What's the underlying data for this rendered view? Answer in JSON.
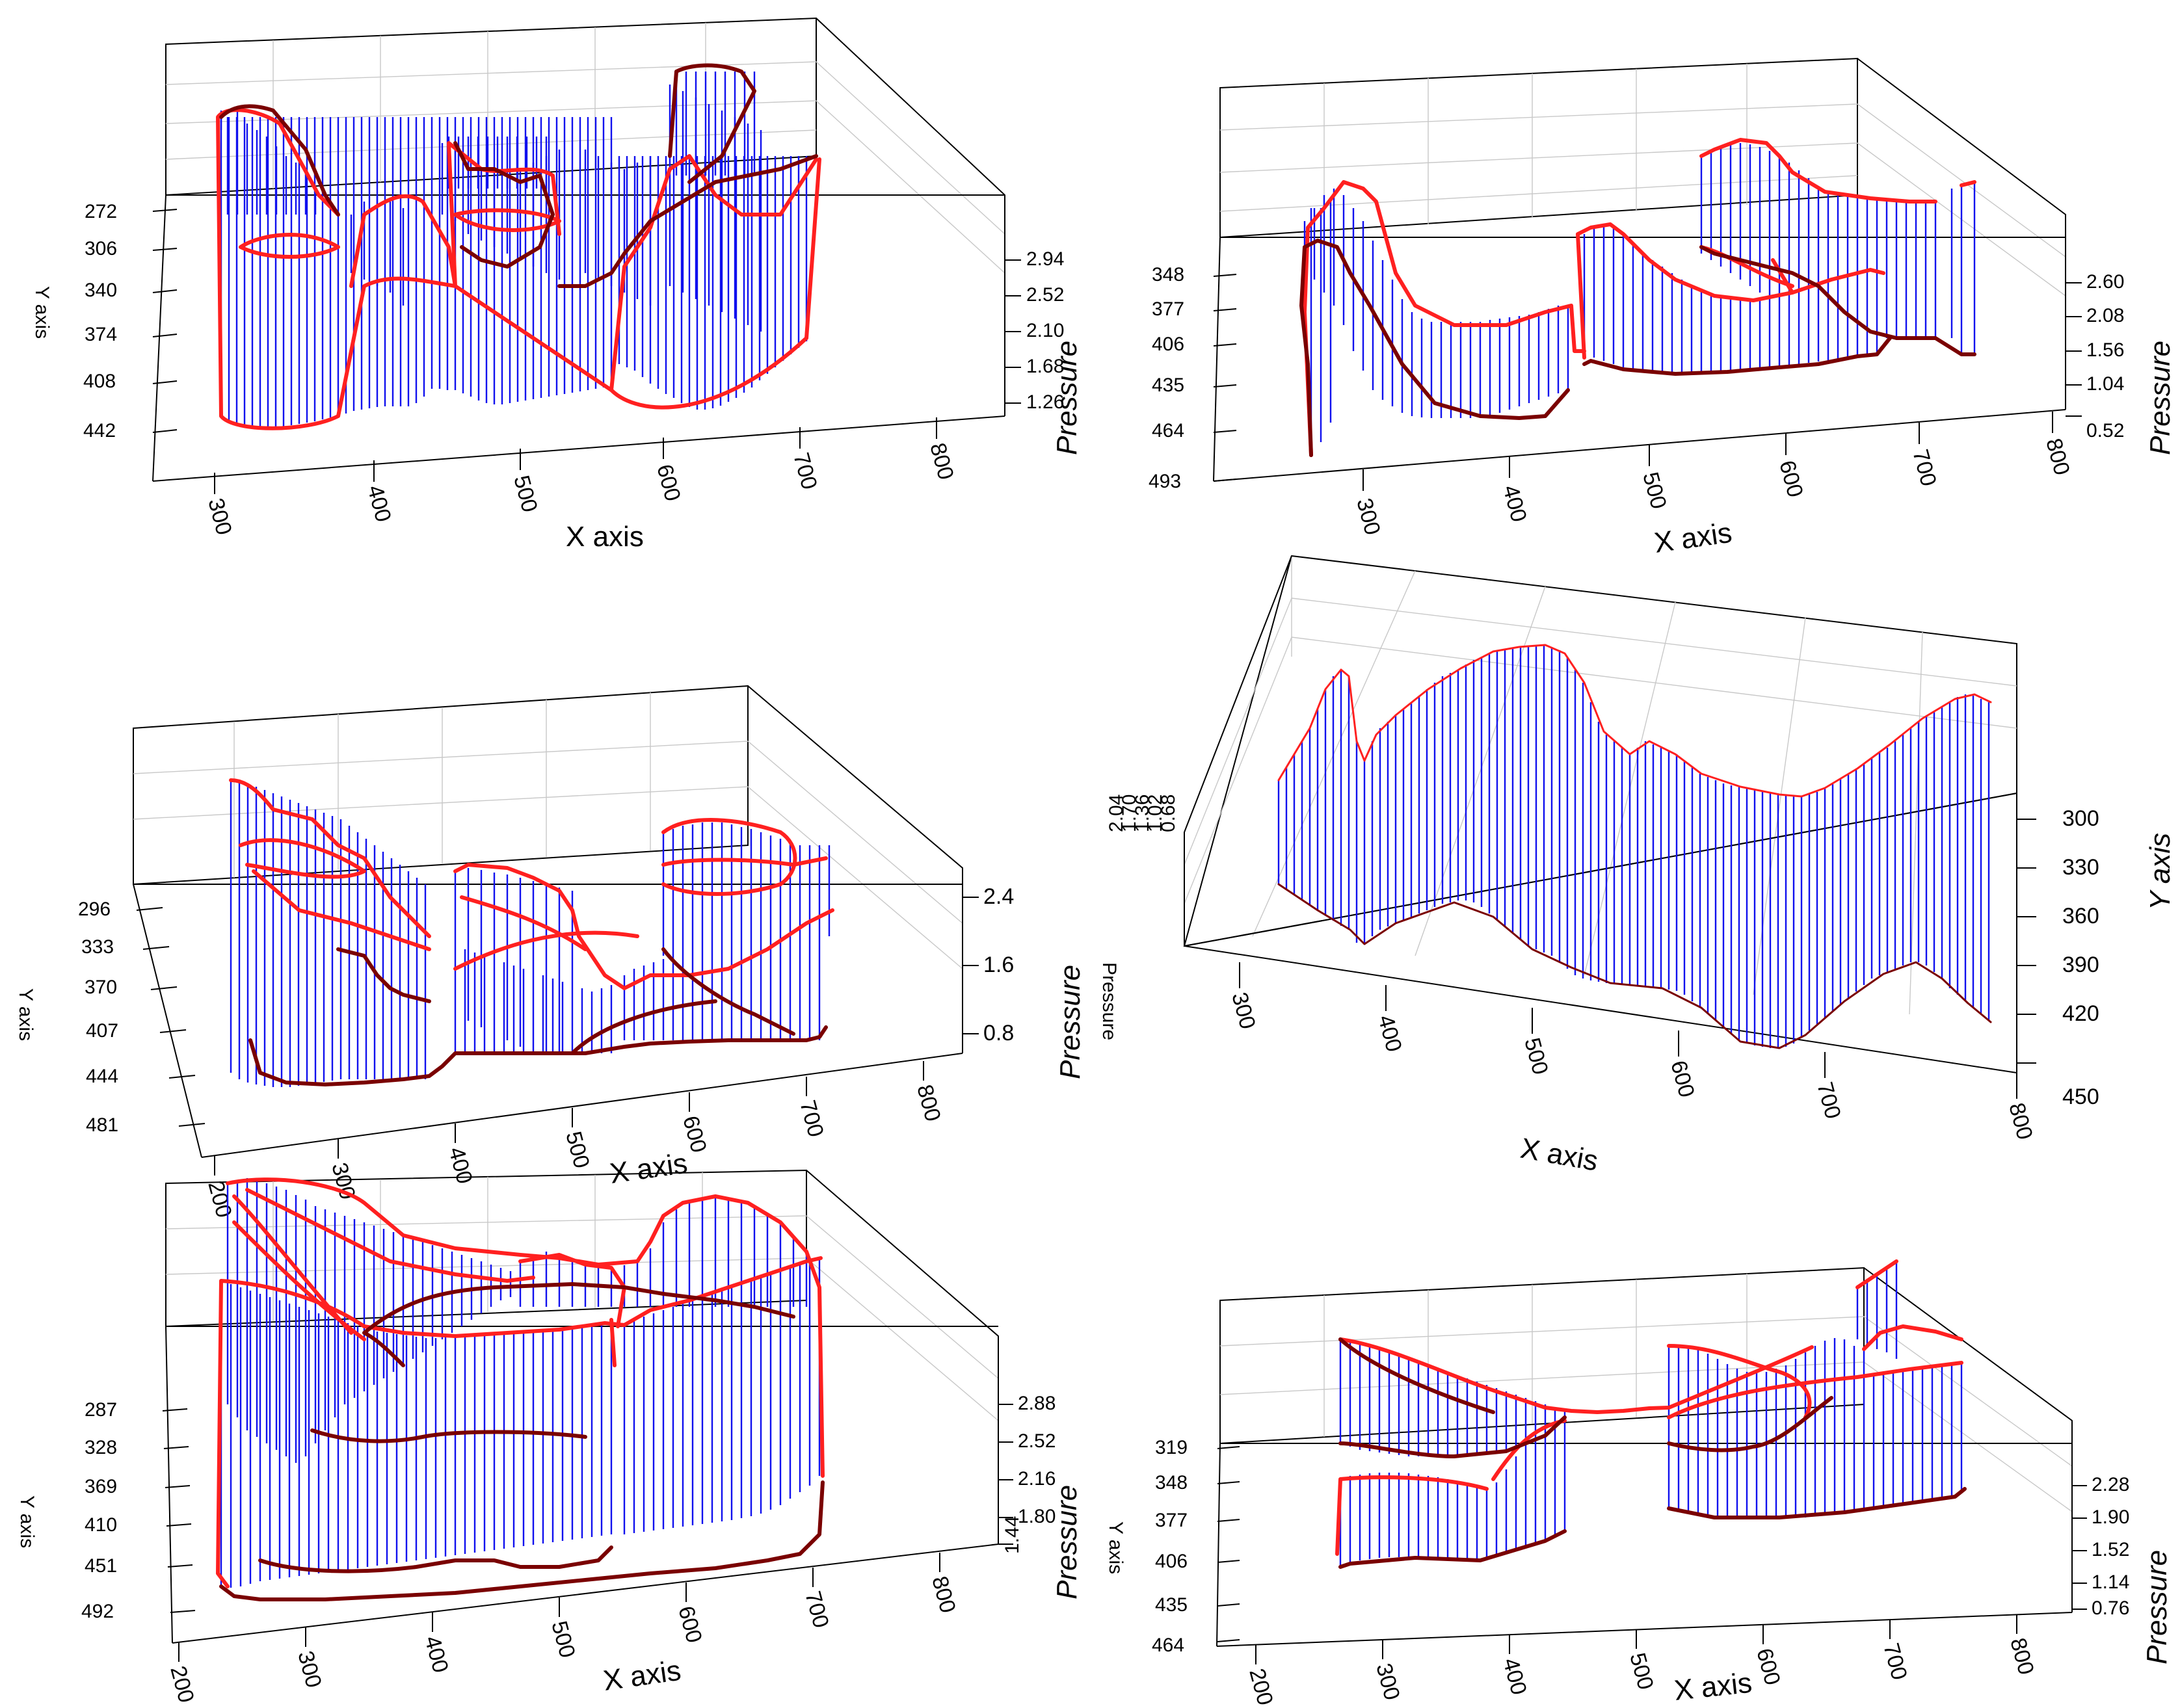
{
  "chart_data": [
    {
      "type": "3d-stem",
      "panel": "top-left",
      "xlabel": "X axis",
      "ylabel": "Y axis",
      "zlabel": "Pressure",
      "x_ticks": [
        "300",
        "400",
        "500",
        "600",
        "700",
        "800"
      ],
      "y_ticks": [
        "272",
        "306",
        "340",
        "374",
        "408",
        "442"
      ],
      "z_ticks": [
        "2.94",
        "2.52",
        "2.10",
        "1.68",
        "1.26"
      ],
      "colors": {
        "stem": "#1010ee",
        "top": "#ff2020",
        "base": "#7a0000"
      }
    },
    {
      "type": "3d-stem",
      "panel": "top-right",
      "xlabel": "X axis",
      "ylabel": "Y axis",
      "zlabel": "Pressure",
      "x_ticks": [
        "300",
        "400",
        "500",
        "600",
        "700",
        "800"
      ],
      "y_ticks": [
        "348",
        "377",
        "406",
        "435",
        "464",
        "493"
      ],
      "z_ticks": [
        "2.60",
        "2.08",
        "1.56",
        "1.04",
        "0.52"
      ],
      "colors": {
        "stem": "#1010ee",
        "top": "#ff2020",
        "base": "#7a0000"
      }
    },
    {
      "type": "3d-stem",
      "panel": "middle-left",
      "xlabel": "X axis",
      "ylabel": "Y axis",
      "zlabel": "Pressure",
      "x_ticks": [
        "200",
        "300",
        "400",
        "500",
        "600",
        "700",
        "800"
      ],
      "y_ticks": [
        "296",
        "333",
        "370",
        "407",
        "444",
        "481"
      ],
      "z_ticks": [
        "2.4",
        "1.6",
        "0.8"
      ],
      "colors": {
        "stem": "#1010ee",
        "top": "#ff2020",
        "base": "#7a0000"
      }
    },
    {
      "type": "3d-stem",
      "panel": "middle-right",
      "xlabel": "X axis",
      "ylabel": "Y axis",
      "zlabel": "Pressure",
      "x_ticks": [
        "300",
        "400",
        "500",
        "600",
        "700",
        "800"
      ],
      "y_ticks": [
        "300",
        "330",
        "360",
        "390",
        "420",
        "450"
      ],
      "z_ticks": [
        "2.04",
        "1.70",
        "1.36",
        "1.02",
        "0.68"
      ],
      "colors": {
        "stem": "#1010ee",
        "top": "#ff2020",
        "base": "#7a0000"
      }
    },
    {
      "type": "3d-stem",
      "panel": "bottom-left",
      "xlabel": "X axis",
      "ylabel": "Y axis",
      "zlabel": "Pressure",
      "x_ticks": [
        "200",
        "300",
        "400",
        "500",
        "600",
        "700",
        "800"
      ],
      "y_ticks": [
        "287",
        "328",
        "369",
        "410",
        "451",
        "492"
      ],
      "z_ticks": [
        "2.88",
        "2.52",
        "2.16",
        "1.80",
        "1.44"
      ],
      "colors": {
        "stem": "#1010ee",
        "top": "#ff2020",
        "base": "#7a0000"
      }
    },
    {
      "type": "3d-stem",
      "panel": "bottom-right",
      "xlabel": "X axis",
      "ylabel": "Y axis",
      "zlabel": "Pressure",
      "x_ticks": [
        "200",
        "300",
        "400",
        "500",
        "600",
        "700",
        "800"
      ],
      "y_ticks": [
        "319",
        "348",
        "377",
        "406",
        "435",
        "464"
      ],
      "z_ticks": [
        "2.28",
        "1.90",
        "1.52",
        "1.14",
        "0.76"
      ],
      "colors": {
        "stem": "#1010ee",
        "top": "#ff2020",
        "base": "#7a0000"
      }
    }
  ]
}
